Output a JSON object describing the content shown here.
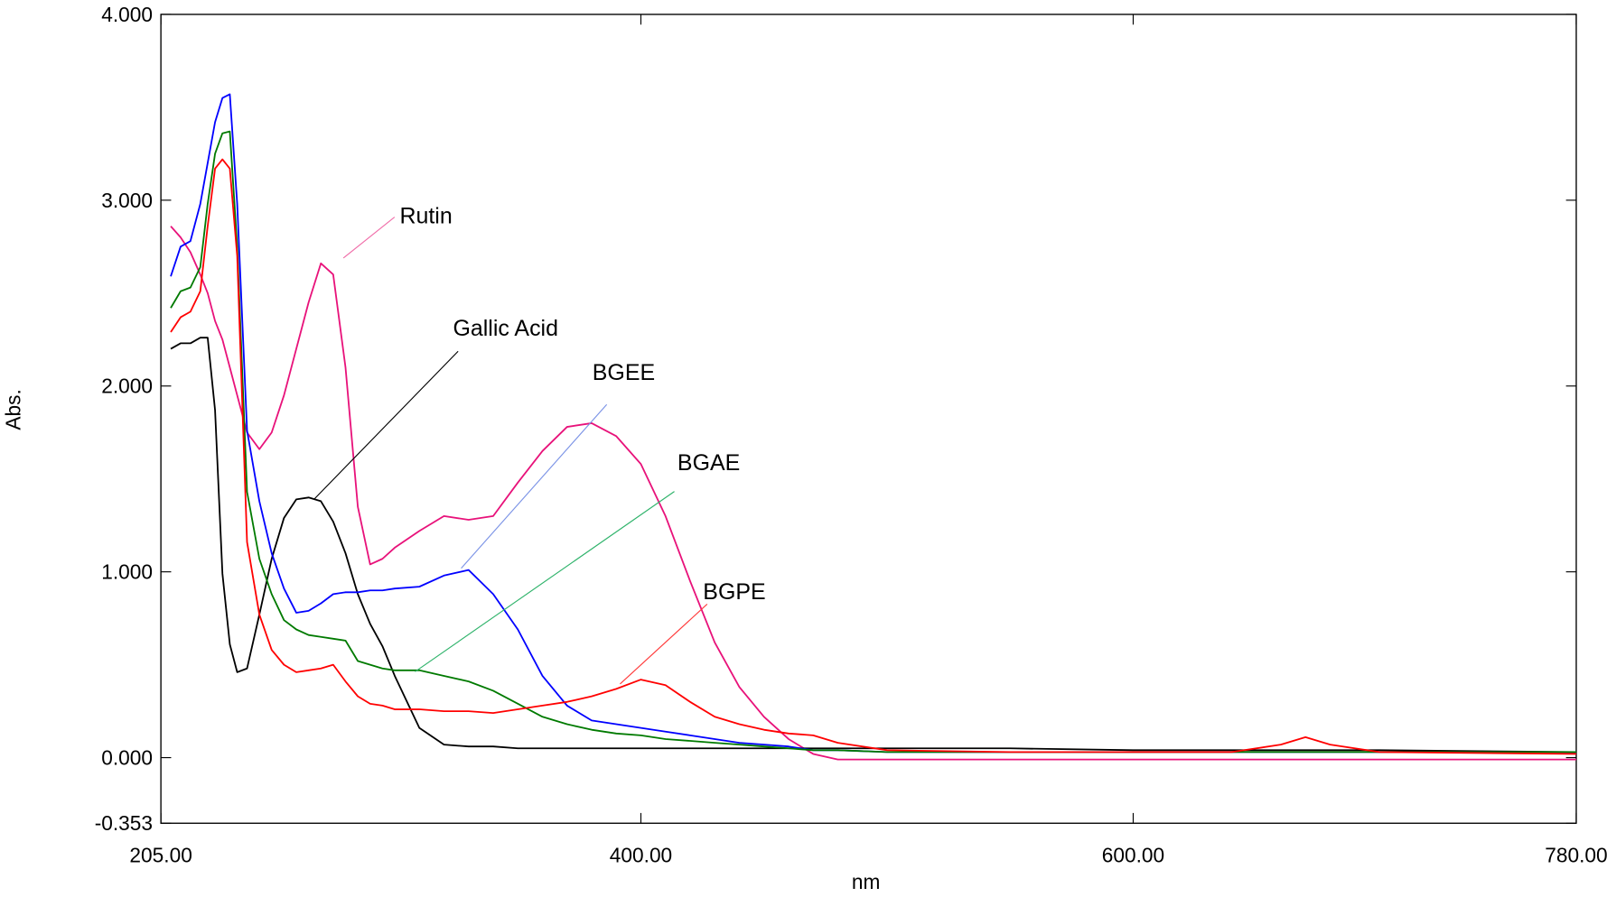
{
  "chart_data": {
    "type": "line",
    "x_label": "nm",
    "y_label": "Abs.",
    "xlim": [
      205,
      780
    ],
    "ylim": [
      -0.353,
      4
    ],
    "xticks": [
      {
        "value": 205,
        "label": "205.00"
      },
      {
        "value": 400,
        "label": "400.00"
      },
      {
        "value": 600,
        "label": "600.00"
      },
      {
        "value": 780,
        "label": "780.00"
      }
    ],
    "yticks": [
      {
        "value": -0.353,
        "label": "-0.353"
      },
      {
        "value": 0,
        "label": "0.000"
      },
      {
        "value": 1,
        "label": "1.000"
      },
      {
        "value": 2,
        "label": "2.000"
      },
      {
        "value": 3,
        "label": "3.000"
      },
      {
        "value": 4,
        "label": "4.000"
      }
    ],
    "grid": false,
    "x": [
      209,
      213,
      217,
      221,
      224,
      227,
      230,
      233,
      236,
      240,
      245,
      250,
      255,
      260,
      265,
      270,
      275,
      280,
      285,
      290,
      295,
      300,
      310,
      320,
      330,
      340,
      350,
      360,
      370,
      380,
      390,
      400,
      410,
      420,
      430,
      440,
      450,
      460,
      470,
      480,
      500,
      550,
      600,
      640,
      660,
      670,
      680,
      700,
      780
    ],
    "series": [
      {
        "name": "Rutin",
        "color": "#e8127a",
        "values": [
          2.86,
          2.8,
          2.72,
          2.6,
          2.5,
          2.35,
          2.25,
          2.1,
          1.95,
          1.75,
          1.66,
          1.75,
          1.95,
          2.2,
          2.45,
          2.66,
          2.6,
          2.1,
          1.35,
          1.04,
          1.07,
          1.13,
          1.22,
          1.3,
          1.28,
          1.3,
          1.48,
          1.65,
          1.78,
          1.8,
          1.73,
          1.58,
          1.3,
          0.95,
          0.62,
          0.38,
          0.22,
          0.1,
          0.02,
          -0.01,
          -0.01,
          -0.01,
          -0.01,
          -0.01,
          -0.01,
          -0.01,
          -0.01,
          -0.01,
          -0.01
        ]
      },
      {
        "name": "Gallic Acid",
        "color": "#000000",
        "values": [
          2.2,
          2.23,
          2.23,
          2.26,
          2.26,
          1.87,
          0.99,
          0.61,
          0.46,
          0.48,
          0.77,
          1.07,
          1.29,
          1.39,
          1.4,
          1.38,
          1.27,
          1.1,
          0.88,
          0.72,
          0.6,
          0.44,
          0.16,
          0.07,
          0.06,
          0.06,
          0.05,
          0.05,
          0.05,
          0.05,
          0.05,
          0.05,
          0.05,
          0.05,
          0.05,
          0.05,
          0.05,
          0.05,
          0.05,
          0.05,
          0.05,
          0.05,
          0.04,
          0.04,
          0.04,
          0.04,
          0.04,
          0.04,
          0.03
        ]
      },
      {
        "name": "BGEE",
        "color": "#0000ff",
        "values": [
          2.59,
          2.75,
          2.78,
          2.98,
          3.2,
          3.42,
          3.55,
          3.57,
          2.98,
          1.76,
          1.38,
          1.1,
          0.91,
          0.78,
          0.79,
          0.83,
          0.88,
          0.89,
          0.89,
          0.9,
          0.9,
          0.91,
          0.92,
          0.98,
          1.01,
          0.88,
          0.69,
          0.44,
          0.28,
          0.2,
          0.18,
          0.16,
          0.14,
          0.12,
          0.1,
          0.08,
          0.07,
          0.06,
          0.04,
          0.04,
          0.03,
          0.03,
          0.03,
          0.03,
          0.03,
          0.03,
          0.03,
          0.03,
          0.03
        ]
      },
      {
        "name": "BGAE",
        "color": "#007a00",
        "values": [
          2.42,
          2.51,
          2.53,
          2.64,
          2.98,
          3.25,
          3.36,
          3.37,
          2.75,
          1.43,
          1.07,
          0.88,
          0.74,
          0.69,
          0.66,
          0.65,
          0.64,
          0.63,
          0.52,
          0.5,
          0.48,
          0.47,
          0.47,
          0.44,
          0.41,
          0.36,
          0.29,
          0.22,
          0.18,
          0.15,
          0.13,
          0.12,
          0.1,
          0.09,
          0.08,
          0.07,
          0.06,
          0.05,
          0.04,
          0.04,
          0.03,
          0.03,
          0.03,
          0.03,
          0.03,
          0.03,
          0.03,
          0.03,
          0.03
        ]
      },
      {
        "name": "BGPE",
        "color": "#ff0000",
        "values": [
          2.29,
          2.37,
          2.4,
          2.51,
          2.86,
          3.17,
          3.22,
          3.17,
          2.7,
          1.16,
          0.77,
          0.58,
          0.5,
          0.46,
          0.47,
          0.48,
          0.5,
          0.41,
          0.33,
          0.29,
          0.28,
          0.26,
          0.26,
          0.25,
          0.25,
          0.24,
          0.26,
          0.28,
          0.3,
          0.33,
          0.37,
          0.42,
          0.39,
          0.3,
          0.22,
          0.18,
          0.15,
          0.13,
          0.12,
          0.08,
          0.04,
          0.03,
          0.03,
          0.03,
          0.07,
          0.11,
          0.07,
          0.03,
          0.02
        ]
      }
    ]
  }
}
